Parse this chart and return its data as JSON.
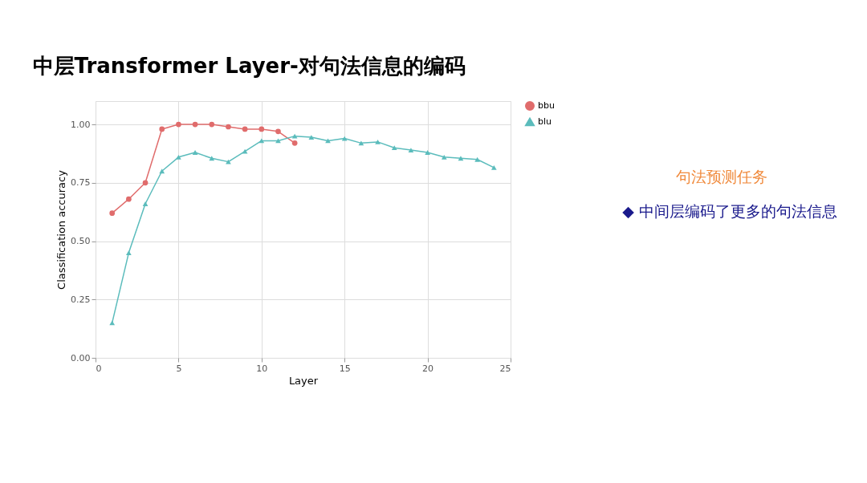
{
  "chart_data": {
    "type": "line",
    "title": "中层Transformer Layer-对句法信息的编码",
    "xlabel": "Layer",
    "ylabel": "Classification accuracy",
    "x": [
      1,
      2,
      3,
      4,
      5,
      6,
      7,
      8,
      9,
      10,
      11,
      12,
      13,
      14,
      15,
      16,
      17,
      18,
      19,
      20,
      21,
      22,
      23,
      24
    ],
    "series": [
      {
        "name": "bbu",
        "color": "#e06c6c",
        "marker": "circle",
        "values": [
          0.62,
          0.68,
          0.75,
          0.98,
          1.0,
          1.0,
          1.0,
          0.99,
          0.98,
          0.98,
          0.97,
          0.92,
          null,
          null,
          null,
          null,
          null,
          null,
          null,
          null,
          null,
          null,
          null,
          null
        ]
      },
      {
        "name": "blu",
        "color": "#5bbcbc",
        "marker": "triangle",
        "values": [
          0.15,
          0.45,
          0.66,
          0.8,
          0.86,
          0.88,
          0.855,
          0.84,
          0.885,
          0.93,
          0.93,
          0.95,
          0.945,
          0.93,
          0.94,
          0.92,
          0.925,
          0.9,
          0.89,
          0.88,
          0.86,
          0.855,
          0.85,
          0.815
        ]
      }
    ],
    "xlim": [
      0,
      25
    ],
    "xticks": [
      0,
      5,
      10,
      15,
      20,
      25
    ],
    "ylim": [
      0,
      1.1
    ],
    "yticks": [
      {
        "value": 0,
        "label": "0.00"
      },
      {
        "value": 0.25,
        "label": "0.25"
      },
      {
        "value": 0.5,
        "label": "0.50"
      },
      {
        "value": 0.75,
        "label": "0.75"
      },
      {
        "value": 1.0,
        "label": "1.00"
      }
    ],
    "grid": true,
    "legend": "right",
    "line_style": "solid",
    "annotations": [
      "句法预测任务",
      "◆ 中间层编码了更多的句法信息"
    ]
  }
}
